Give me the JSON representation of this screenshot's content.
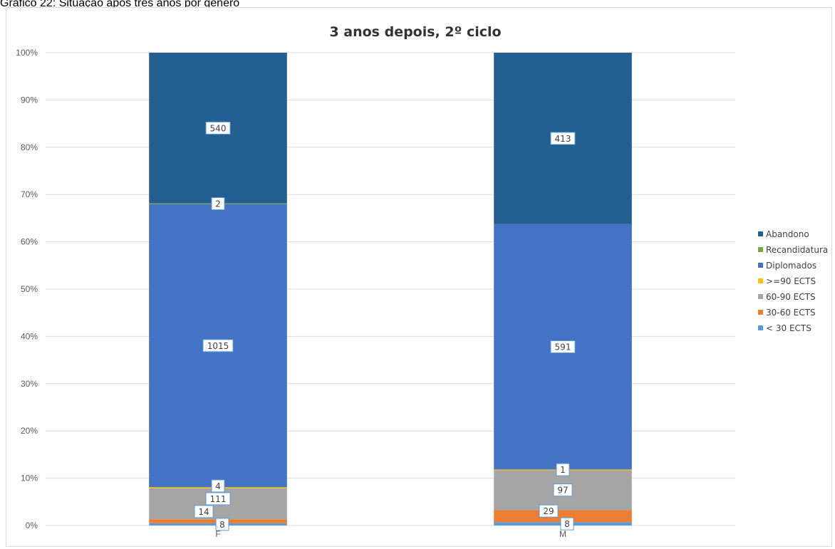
{
  "caption": "Gráfico 22: Situação após três anos por género",
  "chart_data": {
    "type": "bar",
    "stacked": "percent",
    "title": "3 anos depois, 2º ciclo",
    "xlabel": "",
    "ylabel": "",
    "categories": [
      "F",
      "M"
    ],
    "y_ticks": [
      "0%",
      "10%",
      "20%",
      "30%",
      "40%",
      "50%",
      "60%",
      "70%",
      "80%",
      "90%",
      "100%"
    ],
    "ylim": [
      0,
      100
    ],
    "grid": true,
    "legend_position": "right",
    "series": [
      {
        "name": "< 30 ECTS",
        "color": "#5b9bd5",
        "values": [
          8,
          8
        ]
      },
      {
        "name": "30-60 ECTS",
        "color": "#ed7d31",
        "values": [
          14,
          29
        ]
      },
      {
        "name": "60-90 ECTS",
        "color": "#a5a5a5",
        "values": [
          111,
          97
        ]
      },
      {
        "name": ">=90 ECTS",
        "color": "#ffc000",
        "values": [
          4,
          1
        ]
      },
      {
        "name": "Diplomados",
        "color": "#4472c4",
        "values": [
          1015,
          591
        ]
      },
      {
        "name": "Recandidatura",
        "color": "#70ad47",
        "values": [
          2,
          0
        ]
      },
      {
        "name": "Abandono",
        "color": "#255e91",
        "values": [
          540,
          413
        ]
      }
    ]
  }
}
